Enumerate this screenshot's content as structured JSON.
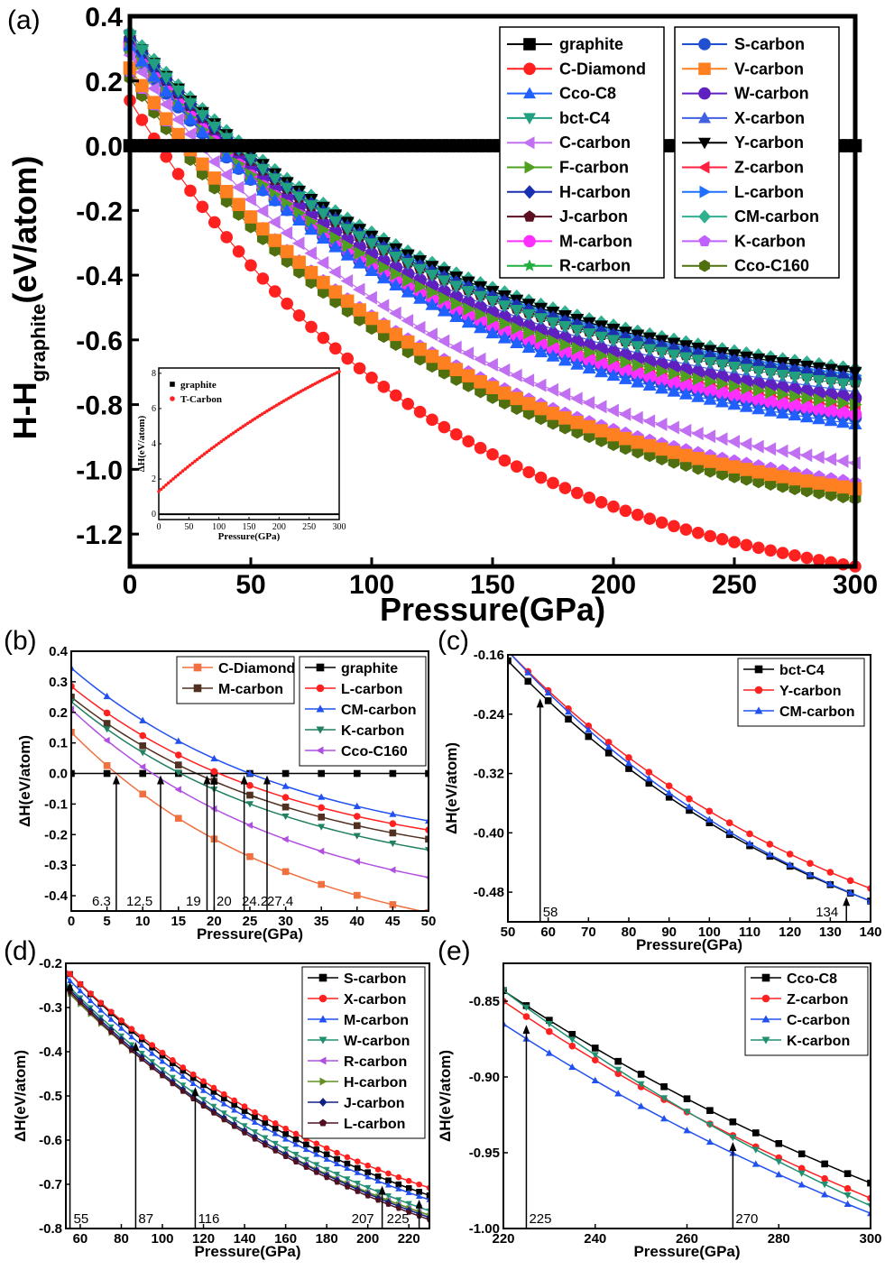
{
  "chart_data": [
    {
      "panel": "(a)",
      "type": "line",
      "xlabel": "Pressure(GPa)",
      "ylabel_main": "H-H",
      "ylabel_sub": "graphite",
      "ylabel_unit": "(eV/atom)",
      "xlim": [
        0,
        300
      ],
      "ylim": [
        -1.3,
        0.4
      ],
      "xticks": [
        0,
        50,
        100,
        150,
        200,
        250,
        300
      ],
      "yticks": [
        0.4,
        0.2,
        0.0,
        -0.2,
        -0.4,
        -0.6,
        -0.8,
        -1.0,
        -1.2
      ],
      "ytick_labels": [
        "0.4",
        "0.2",
        "0.0",
        "-0.2",
        "-0.4",
        "-0.6",
        "-0.8",
        "-1.0",
        "-1.2"
      ],
      "legend_position": "top-right",
      "series": [
        {
          "name": "graphite",
          "color": "#000000",
          "marker": "square",
          "y0": 0.0,
          "y300": 0.0
        },
        {
          "name": "C-Diamond",
          "color": "#ff2020",
          "marker": "circle",
          "y0": 0.14,
          "y300": -1.3
        },
        {
          "name": "Cco-C8",
          "color": "#2060ff",
          "marker": "triangle-up",
          "y0": 0.31,
          "y300": -0.86
        },
        {
          "name": "bct-C4",
          "color": "#20a080",
          "marker": "triangle-down",
          "y0": 0.34,
          "y300": -0.74
        },
        {
          "name": "C-carbon",
          "color": "#c070f0",
          "marker": "triangle-left",
          "y0": 0.28,
          "y300": -0.98
        },
        {
          "name": "F-carbon",
          "color": "#50a020",
          "marker": "triangle-right",
          "y0": 0.3,
          "y300": -0.8
        },
        {
          "name": "H-carbon",
          "color": "#1a30b0",
          "marker": "diamond",
          "y0": 0.33,
          "y300": -0.72
        },
        {
          "name": "J-carbon",
          "color": "#5a1020",
          "marker": "pentagon",
          "y0": 0.33,
          "y300": -0.73
        },
        {
          "name": "M-carbon",
          "color": "#ff30ff",
          "marker": "circle",
          "y0": 0.31,
          "y300": -0.83
        },
        {
          "name": "R-carbon",
          "color": "#20b040",
          "marker": "star",
          "y0": 0.34,
          "y300": -0.72
        },
        {
          "name": "S-carbon",
          "color": "#2050d0",
          "marker": "circle",
          "y0": 0.3,
          "y300": -0.84
        },
        {
          "name": "V-carbon",
          "color": "#ff8020",
          "marker": "square",
          "y0": 0.24,
          "y300": -1.06
        },
        {
          "name": "W-carbon",
          "color": "#6020c0",
          "marker": "circle",
          "y0": 0.32,
          "y300": -0.78
        },
        {
          "name": "X-carbon",
          "color": "#4060e0",
          "marker": "triangle-up",
          "y0": 0.32,
          "y300": -0.76
        },
        {
          "name": "Y-carbon",
          "color": "#000000",
          "marker": "triangle-down",
          "y0": 0.34,
          "y300": -0.7
        },
        {
          "name": "Z-carbon",
          "color": "#ff2040",
          "marker": "triangle-left",
          "y0": 0.31,
          "y300": -0.81
        },
        {
          "name": "L-carbon",
          "color": "#2070ff",
          "marker": "triangle-right",
          "y0": 0.34,
          "y300": -0.71
        },
        {
          "name": "CM-carbon",
          "color": "#30b090",
          "marker": "diamond",
          "y0": 0.35,
          "y300": -0.69
        },
        {
          "name": "K-carbon",
          "color": "#c060ff",
          "marker": "pentagon",
          "y0": 0.23,
          "y300": -1.04
        },
        {
          "name": "Cco-C160",
          "color": "#507010",
          "marker": "hexagon",
          "y0": 0.21,
          "y300": -1.09
        }
      ],
      "inset": {
        "type": "line",
        "xlabel": "Pressure(GPa)",
        "ylabel": "ΔH(eV/atom)",
        "xlim": [
          0,
          300
        ],
        "ylim": [
          -0.3,
          8.3
        ],
        "xticks": [
          0,
          50,
          100,
          150,
          200,
          250,
          300
        ],
        "yticks": [
          0,
          2,
          4,
          6,
          8
        ],
        "legend_position": "top-left",
        "series": [
          {
            "name": "graphite",
            "color": "#000000",
            "marker": "square",
            "y0": 0.0,
            "y300": 0.0
          },
          {
            "name": "T-Carbon",
            "color": "#ff2020",
            "marker": "circle",
            "y0": 1.3,
            "y300": 8.1
          }
        ]
      }
    },
    {
      "panel": "(b)",
      "type": "line",
      "xlabel": "Pressure(GPa)",
      "ylabel": "ΔH(eV/atom)",
      "xlim": [
        0,
        50
      ],
      "ylim": [
        -0.45,
        0.4
      ],
      "xticks": [
        0,
        5,
        10,
        15,
        20,
        25,
        30,
        35,
        40,
        45,
        50
      ],
      "yticks": [
        0.4,
        0.3,
        0.2,
        0.1,
        0.0,
        -0.1,
        -0.2,
        -0.3,
        -0.4
      ],
      "ytick_labels": [
        "0.4",
        "0.3",
        "0.2",
        "0.1",
        "0.0",
        "-0.1",
        "-0.2",
        "-0.3",
        "-0.4"
      ],
      "legend_position": "top",
      "series": [
        {
          "name": "C-Diamond",
          "color": "#f07040",
          "marker": "square",
          "y0": 0.135,
          "y50": -0.455
        },
        {
          "name": "M-carbon",
          "color": "#503020",
          "marker": "square",
          "y0": 0.25,
          "y50": -0.215
        },
        {
          "name": "graphite",
          "color": "#000000",
          "marker": "square",
          "y0": 0.0,
          "y50": 0.0
        },
        {
          "name": "L-carbon",
          "color": "#ff2020",
          "marker": "circle",
          "y0": 0.285,
          "y50": -0.185
        },
        {
          "name": "CM-carbon",
          "color": "#2050f0",
          "marker": "triangle-up",
          "y0": 0.345,
          "y50": -0.155
        },
        {
          "name": "K-carbon",
          "color": "#208060",
          "marker": "triangle-down",
          "y0": 0.235,
          "y50": -0.25
        },
        {
          "name": "Cco-C160",
          "color": "#b050e0",
          "marker": "triangle-left",
          "y0": 0.21,
          "y50": -0.34
        }
      ],
      "annotations": [
        "6.3",
        "12.5",
        "19",
        "20",
        "24.2",
        "27.4"
      ],
      "annotation_values": [
        6.3,
        12.5,
        19,
        20,
        24.2,
        27.4
      ]
    },
    {
      "panel": "(c)",
      "type": "line",
      "xlabel": "Pressure(GPa)",
      "ylabel": "ΔH(eV/atom)",
      "xlim": [
        50,
        140
      ],
      "ylim": [
        -0.52,
        -0.16
      ],
      "xticks": [
        50,
        60,
        70,
        80,
        90,
        100,
        110,
        120,
        130,
        140
      ],
      "yticks": [
        -0.16,
        -0.24,
        -0.32,
        -0.4,
        -0.48
      ],
      "ytick_labels": [
        "-0.16",
        "-0.24",
        "-0.32",
        "-0.40",
        "-0.48"
      ],
      "legend_position": "top-right",
      "series": [
        {
          "name": "bct-C4",
          "color": "#000000",
          "marker": "square",
          "y50": -0.168,
          "y140": -0.492
        },
        {
          "name": "Y-carbon",
          "color": "#ff2020",
          "marker": "circle",
          "y50": -0.155,
          "y140": -0.475
        },
        {
          "name": "CM-carbon",
          "color": "#2050f0",
          "marker": "triangle-up",
          "y50": -0.155,
          "y140": -0.492
        }
      ],
      "annotations": [
        "58",
        "134"
      ],
      "annotation_values": [
        58,
        134
      ]
    },
    {
      "panel": "(d)",
      "type": "line",
      "xlabel": "Pressure(GPa)",
      "ylabel": "ΔH(eV/atom)",
      "xlim": [
        53,
        230
      ],
      "ylim": [
        -0.8,
        -0.2
      ],
      "xticks": [
        60,
        80,
        100,
        120,
        140,
        160,
        180,
        200,
        220
      ],
      "yticks": [
        -0.2,
        -0.3,
        -0.4,
        -0.5,
        -0.6,
        -0.7,
        -0.8
      ],
      "ytick_labels": [
        "-0.2",
        "-0.3",
        "-0.4",
        "-0.5",
        "-0.6",
        "-0.7",
        "-0.8"
      ],
      "legend_position": "top-right",
      "series": [
        {
          "name": "S-carbon",
          "color": "#000000",
          "marker": "square",
          "y53": -0.215,
          "y230": -0.725
        },
        {
          "name": "X-carbon",
          "color": "#ff2020",
          "marker": "circle",
          "y53": -0.215,
          "y230": -0.708
        },
        {
          "name": "M-carbon",
          "color": "#2050f0",
          "marker": "triangle-up",
          "y53": -0.23,
          "y230": -0.735
        },
        {
          "name": "W-carbon",
          "color": "#209070",
          "marker": "triangle-down",
          "y53": -0.245,
          "y230": -0.76
        },
        {
          "name": "R-carbon",
          "color": "#b050e0",
          "marker": "triangle-left",
          "y53": -0.26,
          "y230": -0.77
        },
        {
          "name": "H-carbon",
          "color": "#609020",
          "marker": "triangle-right",
          "y53": -0.26,
          "y230": -0.77
        },
        {
          "name": "J-carbon",
          "color": "#102080",
          "marker": "diamond",
          "y53": -0.25,
          "y230": -0.775
        },
        {
          "name": "L-carbon",
          "color": "#501020",
          "marker": "pentagon",
          "y53": -0.255,
          "y230": -0.78
        }
      ],
      "annotations": [
        "55",
        "87",
        "116",
        "207",
        "225"
      ],
      "annotation_values": [
        55,
        87,
        116,
        207,
        225
      ]
    },
    {
      "panel": "(e)",
      "type": "line",
      "xlabel": "Pressure(GPa)",
      "ylabel": "ΔH(eV/atom)",
      "xlim": [
        220,
        300
      ],
      "ylim": [
        -1.0,
        -0.825
      ],
      "xticks": [
        220,
        240,
        260,
        280,
        300
      ],
      "yticks": [
        -0.85,
        -0.9,
        -0.95,
        -1.0
      ],
      "ytick_labels": [
        "-0.85",
        "-0.90",
        "-0.95",
        "-1.00"
      ],
      "legend_position": "top-right",
      "series": [
        {
          "name": "Cco-C8",
          "color": "#000000",
          "marker": "square",
          "y220": -0.843,
          "y300": -0.97
        },
        {
          "name": "Z-carbon",
          "color": "#ff2020",
          "marker": "circle",
          "y220": -0.85,
          "y300": -0.98
        },
        {
          "name": "C-carbon",
          "color": "#2050f0",
          "marker": "triangle-up",
          "y220": -0.865,
          "y300": -0.99
        },
        {
          "name": "K-carbon",
          "color": "#209070",
          "marker": "triangle-down",
          "y220": -0.843,
          "y300": -0.985
        }
      ],
      "annotations": [
        "225",
        "270"
      ],
      "annotation_values": [
        225,
        270
      ]
    }
  ]
}
